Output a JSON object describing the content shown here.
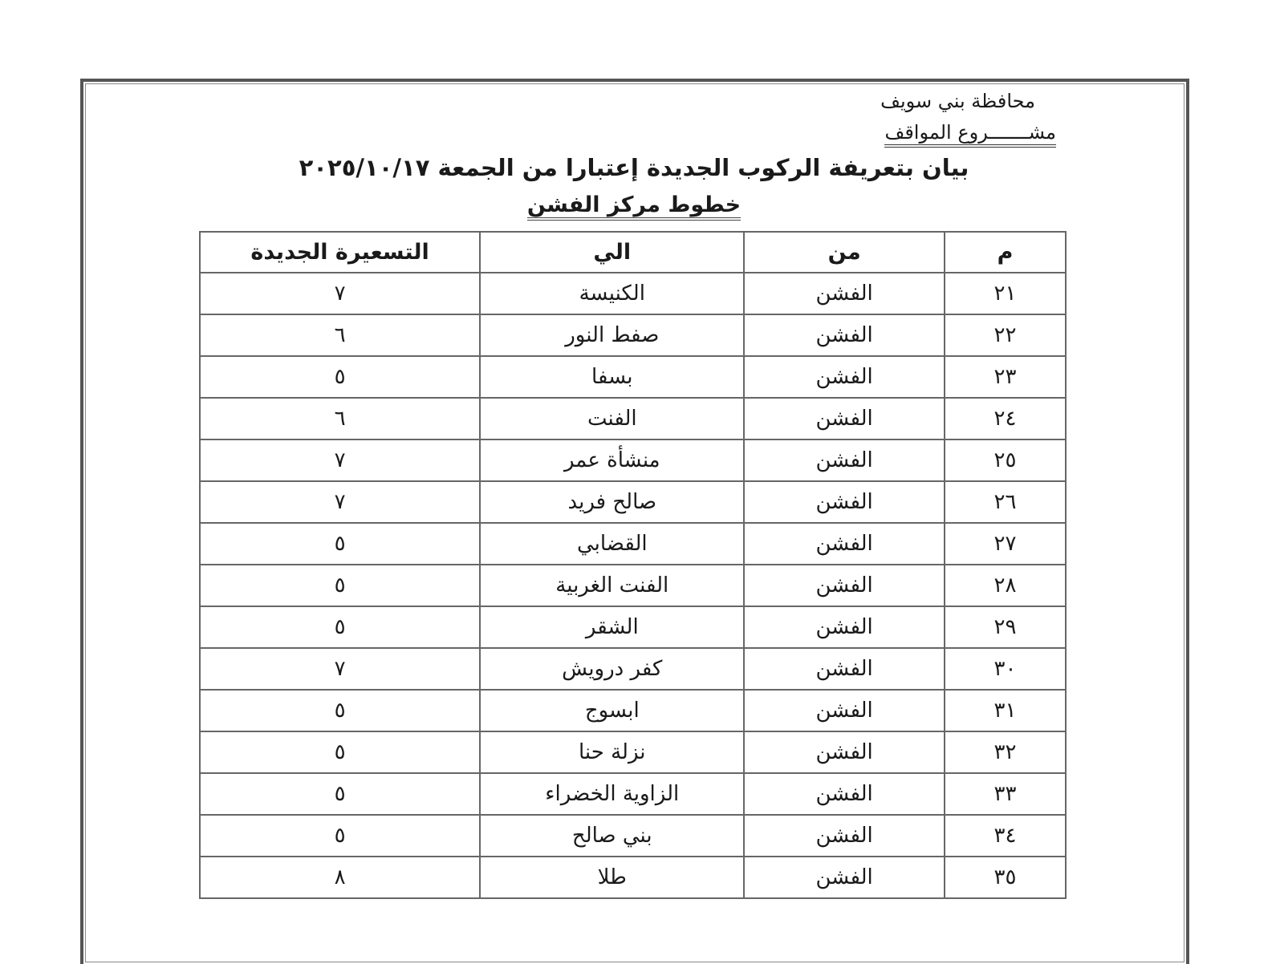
{
  "header": {
    "governorate": "محافظة بني سويف",
    "project": "مشـــــــروع المواقف",
    "title": "بيان بتعريفة الركوب الجديدة إعتبارا من الجمعة ٢٠٢٥/١٠/١٧",
    "subtitle": "خطوط مركز الفشن"
  },
  "table": {
    "columns": [
      "م",
      "من",
      "الي",
      "التسعيرة الجديدة"
    ],
    "rows": [
      [
        "٢١",
        "الفشن",
        "الكنيسة",
        "٧"
      ],
      [
        "٢٢",
        "الفشن",
        "صفط النور",
        "٦"
      ],
      [
        "٢٣",
        "الفشن",
        "بسفا",
        "٥"
      ],
      [
        "٢٤",
        "الفشن",
        "الفنت",
        "٦"
      ],
      [
        "٢٥",
        "الفشن",
        "منشأة عمر",
        "٧"
      ],
      [
        "٢٦",
        "الفشن",
        "صالح فريد",
        "٧"
      ],
      [
        "٢٧",
        "الفشن",
        "القضابي",
        "٥"
      ],
      [
        "٢٨",
        "الفشن",
        "الفنت الغربية",
        "٥"
      ],
      [
        "٢٩",
        "الفشن",
        "الشقر",
        "٥"
      ],
      [
        "٣٠",
        "الفشن",
        "كفر درويش",
        "٧"
      ],
      [
        "٣١",
        "الفشن",
        "ابسوج",
        "٥"
      ],
      [
        "٣٢",
        "الفشن",
        "نزلة حنا",
        "٥"
      ],
      [
        "٣٣",
        "الفشن",
        "الزاوية الخضراء",
        "٥"
      ],
      [
        "٣٤",
        "الفشن",
        "بني صالح",
        "٥"
      ],
      [
        "٣٥",
        "الفشن",
        "طلا",
        "٨"
      ]
    ]
  }
}
